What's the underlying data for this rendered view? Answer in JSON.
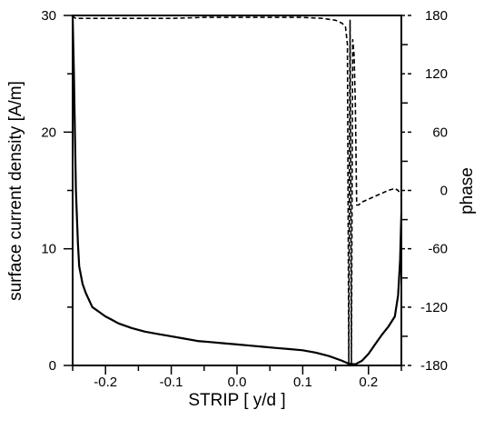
{
  "chart_data": {
    "type": "line",
    "title": "",
    "xlabel": "STRIP [ y/d ]",
    "ylabel": "surface current density [A/m]",
    "y2label": "phase",
    "xlim": [
      -0.25,
      0.25
    ],
    "ylim": [
      0,
      30
    ],
    "y2lim": [
      -180,
      180
    ],
    "x_ticks": [
      -0.2,
      -0.1,
      0.0,
      0.1,
      0.2
    ],
    "x_tick_labels": [
      "-0.2",
      "-0.1",
      "0.0",
      "0.1",
      "0.2"
    ],
    "y_ticks": [
      0,
      10,
      20,
      30
    ],
    "y_tick_labels": [
      "0",
      "10",
      "20",
      "30"
    ],
    "y2_ticks": [
      -180,
      -120,
      -60,
      0,
      60,
      120,
      180
    ],
    "y2_tick_labels": [
      "-180",
      "-120",
      "-60",
      "0",
      "60",
      "120",
      "180"
    ],
    "grid": false,
    "series": [
      {
        "axis": "left",
        "style": "solid",
        "color": "#000000",
        "x": [
          -0.25,
          -0.248,
          -0.245,
          -0.242,
          -0.24,
          -0.235,
          -0.23,
          -0.225,
          -0.22,
          -0.21,
          -0.2,
          -0.19,
          -0.18,
          -0.16,
          -0.14,
          -0.12,
          -0.1,
          -0.08,
          -0.06,
          -0.04,
          -0.02,
          0.0,
          0.02,
          0.04,
          0.06,
          0.08,
          0.1,
          0.12,
          0.14,
          0.16,
          0.17,
          0.18,
          0.19,
          0.2,
          0.21,
          0.22,
          0.23,
          0.24,
          0.245,
          0.248,
          0.25
        ],
        "values": [
          30,
          25,
          15,
          10.5,
          8.5,
          7.0,
          6.2,
          5.6,
          5.0,
          4.6,
          4.2,
          3.9,
          3.6,
          3.2,
          2.9,
          2.7,
          2.5,
          2.3,
          2.1,
          2.0,
          1.9,
          1.8,
          1.7,
          1.6,
          1.5,
          1.4,
          1.3,
          1.1,
          0.8,
          0.4,
          0.15,
          0.1,
          0.4,
          1.0,
          1.8,
          2.6,
          3.3,
          4.2,
          6.0,
          9.0,
          13.0
        ]
      },
      {
        "axis": "right",
        "style": "dashed",
        "color": "#000000",
        "x": [
          -0.25,
          -0.248,
          -0.245,
          -0.2,
          -0.15,
          -0.1,
          -0.05,
          0.0,
          0.05,
          0.1,
          0.13,
          0.15,
          0.16,
          0.165,
          0.168,
          0.17,
          0.172,
          0.174,
          0.176,
          0.178,
          0.18,
          0.182,
          0.185,
          0.19,
          0.2,
          0.21,
          0.22,
          0.23,
          0.24,
          0.245,
          0.25
        ],
        "values": [
          180,
          178,
          177,
          177,
          177,
          177,
          178,
          178,
          178,
          178,
          177,
          175,
          172,
          168,
          150,
          -180,
          175,
          -180,
          155,
          140,
          90,
          -15,
          -15,
          -12,
          -9,
          -6,
          -3,
          0,
          2,
          0,
          -5
        ]
      }
    ]
  }
}
